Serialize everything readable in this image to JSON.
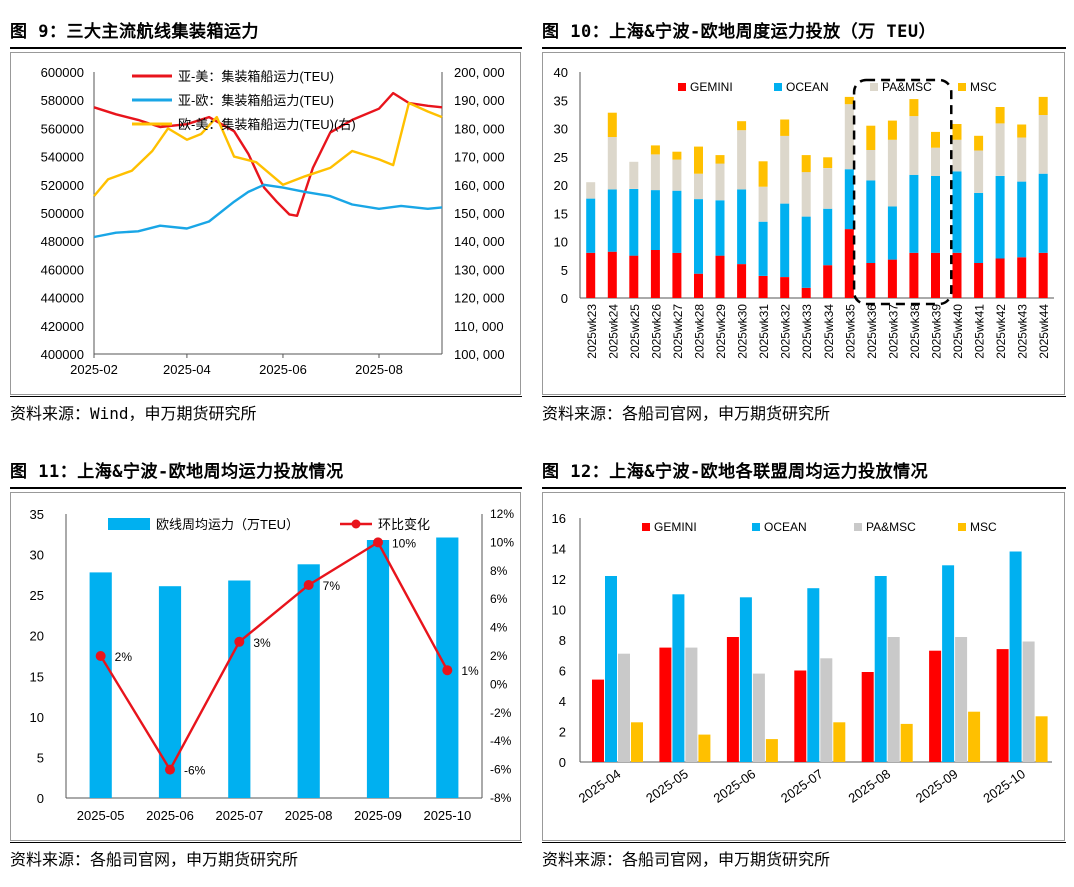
{
  "panels": [
    {
      "title": "图 9：三大主流航线集装箱运力",
      "source": "资料来源：Wind，申万期货研究所"
    },
    {
      "title": "图 10：上海&宁波-欧地周度运力投放（万 TEU）",
      "source": "资料来源：各船司官网，申万期货研究所"
    },
    {
      "title": "图 11：上海&宁波-欧地周均运力投放情况",
      "source": "资料来源：各船司官网，申万期货研究所"
    },
    {
      "title": "图 12：上海&宁波-欧地各联盟周均运力投放情况",
      "source": "资料来源：各船司官网，申万期货研究所"
    }
  ],
  "chart_data": [
    {
      "type": "line",
      "x_ticks": [
        "2025-02",
        "2025-04",
        "2025-06",
        "2025-08"
      ],
      "y_left_ticks": [
        "400000",
        "420000",
        "440000",
        "460000",
        "480000",
        "500000",
        "520000",
        "540000",
        "560000",
        "580000",
        "600000"
      ],
      "y_right_ticks": [
        "100, 000",
        "110, 000",
        "120, 000",
        "130, 000",
        "140, 000",
        "150, 000",
        "160, 000",
        "170, 000",
        "180, 000",
        "190, 000",
        "200, 000"
      ],
      "ylim_left": [
        400000,
        600000
      ],
      "ylim_right": [
        100000,
        200000
      ],
      "xlim": [
        "2025-02-01",
        "2025-09-10"
      ],
      "series": [
        {
          "name": "亚-美：集装箱船运力(TEU)",
          "axis": "left",
          "color": "#e8141c",
          "points": [
            [
              "2025-02-01",
              575000
            ],
            [
              "2025-02-15",
              570000
            ],
            [
              "2025-03-01",
              566000
            ],
            [
              "2025-03-15",
              561000
            ],
            [
              "2025-04-01",
              563000
            ],
            [
              "2025-04-15",
              568000
            ],
            [
              "2025-05-01",
              558000
            ],
            [
              "2025-05-10",
              542000
            ],
            [
              "2025-05-20",
              518000
            ],
            [
              "2025-05-28",
              508000
            ],
            [
              "2025-06-05",
              499000
            ],
            [
              "2025-06-10",
              498000
            ],
            [
              "2025-06-20",
              532000
            ],
            [
              "2025-07-01",
              557000
            ],
            [
              "2025-07-15",
              566000
            ],
            [
              "2025-08-01",
              574000
            ],
            [
              "2025-08-10",
              585000
            ],
            [
              "2025-08-20",
              578000
            ],
            [
              "2025-09-01",
              576000
            ],
            [
              "2025-09-10",
              575000
            ]
          ]
        },
        {
          "name": "亚-欧：集装箱船运力(TEU)",
          "axis": "left",
          "color": "#19a6e6",
          "points": [
            [
              "2025-02-01",
              483000
            ],
            [
              "2025-02-15",
              486000
            ],
            [
              "2025-03-01",
              487000
            ],
            [
              "2025-03-15",
              491000
            ],
            [
              "2025-04-01",
              489000
            ],
            [
              "2025-04-15",
              494000
            ],
            [
              "2025-05-01",
              508000
            ],
            [
              "2025-05-10",
              515000
            ],
            [
              "2025-05-20",
              520000
            ],
            [
              "2025-06-01",
              518000
            ],
            [
              "2025-06-15",
              515000
            ],
            [
              "2025-07-01",
              512000
            ],
            [
              "2025-07-15",
              506000
            ],
            [
              "2025-08-01",
              503000
            ],
            [
              "2025-08-15",
              505000
            ],
            [
              "2025-09-01",
              503000
            ],
            [
              "2025-09-10",
              504000
            ]
          ]
        },
        {
          "name": "欧-美：集装箱船运力(TEU)(右)",
          "axis": "right",
          "color": "#ffc000",
          "points": [
            [
              "2025-02-01",
              156000
            ],
            [
              "2025-02-10",
              162000
            ],
            [
              "2025-02-25",
              165000
            ],
            [
              "2025-03-10",
              172000
            ],
            [
              "2025-03-20",
              180000
            ],
            [
              "2025-04-01",
              176000
            ],
            [
              "2025-04-10",
              178000
            ],
            [
              "2025-04-20",
              184000
            ],
            [
              "2025-05-01",
              170000
            ],
            [
              "2025-05-15",
              168000
            ],
            [
              "2025-06-01",
              160000
            ],
            [
              "2025-06-15",
              163000
            ],
            [
              "2025-07-01",
              166000
            ],
            [
              "2025-07-15",
              172000
            ],
            [
              "2025-08-01",
              169000
            ],
            [
              "2025-08-10",
              167000
            ],
            [
              "2025-08-20",
              189000
            ],
            [
              "2025-09-01",
              186000
            ],
            [
              "2025-09-10",
              184000
            ]
          ]
        }
      ]
    },
    {
      "type": "bar",
      "stacked": true,
      "categories": [
        "2025wk23",
        "2025wk24",
        "2025wk25",
        "2025wk26",
        "2025wk27",
        "2025wk28",
        "2025wk29",
        "2025wk30",
        "2025wk31",
        "2025wk32",
        "2025wk33",
        "2025wk34",
        "2025wk35",
        "2025wk36",
        "2025wk37",
        "2025wk38",
        "2025wk39",
        "2025wk40",
        "2025wk41",
        "2025wk42",
        "2025wk43",
        "2025wk44"
      ],
      "ylim": [
        0,
        40
      ],
      "y_ticks": [
        "0",
        "5",
        "10",
        "15",
        "20",
        "25",
        "30",
        "35",
        "40"
      ],
      "series": [
        {
          "name": "GEMINI",
          "color": "#ff0000",
          "values": [
            8.0,
            8.2,
            7.5,
            8.5,
            8.0,
            4.3,
            7.5,
            6.0,
            3.9,
            3.7,
            1.8,
            5.8,
            12.2,
            6.2,
            6.8,
            8.0,
            8.0,
            8.0,
            6.2,
            7.0,
            7.2,
            8.0
          ]
        },
        {
          "name": "OCEAN",
          "color": "#00b0f0",
          "values": [
            9.6,
            11.0,
            11.8,
            10.6,
            11.0,
            13.2,
            9.8,
            13.2,
            9.6,
            13.0,
            12.6,
            10.0,
            10.6,
            14.6,
            9.4,
            13.8,
            13.6,
            14.4,
            12.4,
            14.6,
            13.4,
            14.0
          ]
        },
        {
          "name": "PA&MSC",
          "color": "#dcd7cb",
          "values": [
            2.9,
            9.3,
            4.8,
            6.3,
            5.5,
            4.5,
            6.5,
            10.5,
            6.2,
            12.0,
            7.9,
            7.2,
            11.5,
            5.4,
            11.8,
            10.4,
            5.0,
            5.6,
            7.5,
            9.3,
            7.8,
            10.4
          ]
        },
        {
          "name": "MSC",
          "color": "#ffc000",
          "values": [
            0,
            4.3,
            0,
            1.6,
            1.4,
            4.8,
            1.5,
            1.6,
            4.5,
            2.9,
            3.0,
            1.9,
            1.3,
            4.3,
            3.4,
            3.0,
            2.8,
            2.8,
            2.6,
            2.9,
            2.3,
            3.2
          ]
        }
      ]
    },
    {
      "type": "bar",
      "categories": [
        "2025-05",
        "2025-06",
        "2025-07",
        "2025-08",
        "2025-09",
        "2025-10"
      ],
      "ylim": [
        0,
        35
      ],
      "y2lim": [
        -8,
        12
      ],
      "y_ticks": [
        "0",
        "5",
        "10",
        "15",
        "20",
        "25",
        "30",
        "35"
      ],
      "y2_ticks": [
        "-8%",
        "-6%",
        "-4%",
        "-2%",
        "0%",
        "2%",
        "4%",
        "6%",
        "8%",
        "10%",
        "12%"
      ],
      "series": [
        {
          "name": "欧线周均运力（万TEU）",
          "type": "bar",
          "axis": "left",
          "color": "#00b0f0",
          "values": [
            27.8,
            26.1,
            26.8,
            28.8,
            31.8,
            32.1
          ]
        },
        {
          "name": "环比变化",
          "type": "line",
          "axis": "right",
          "color": "#e8141c",
          "values": [
            2,
            -6,
            3,
            7,
            10,
            1
          ],
          "labels": [
            "2%",
            "-6%",
            "3%",
            "7%",
            "10%",
            "1%"
          ]
        }
      ]
    },
    {
      "type": "bar",
      "categories": [
        "2025-04",
        "2025-05",
        "2025-06",
        "2025-07",
        "2025-08",
        "2025-09",
        "2025-10"
      ],
      "ylim": [
        0,
        16
      ],
      "y_ticks": [
        "0",
        "2",
        "4",
        "6",
        "8",
        "10",
        "12",
        "14",
        "16"
      ],
      "series": [
        {
          "name": "GEMINI",
          "color": "#ff0000",
          "values": [
            5.4,
            7.5,
            8.2,
            6.0,
            5.9,
            7.3,
            7.4
          ]
        },
        {
          "name": "OCEAN",
          "color": "#00b0f0",
          "values": [
            12.2,
            11.0,
            10.8,
            11.4,
            12.2,
            12.9,
            13.8
          ]
        },
        {
          "name": "PA&MSC",
          "color": "#c9c9c9",
          "values": [
            7.1,
            7.5,
            5.8,
            6.8,
            8.2,
            8.2,
            7.9
          ]
        },
        {
          "name": "MSC",
          "color": "#ffc000",
          "values": [
            2.6,
            1.8,
            1.5,
            2.6,
            2.5,
            3.3,
            3.0
          ]
        }
      ]
    }
  ]
}
